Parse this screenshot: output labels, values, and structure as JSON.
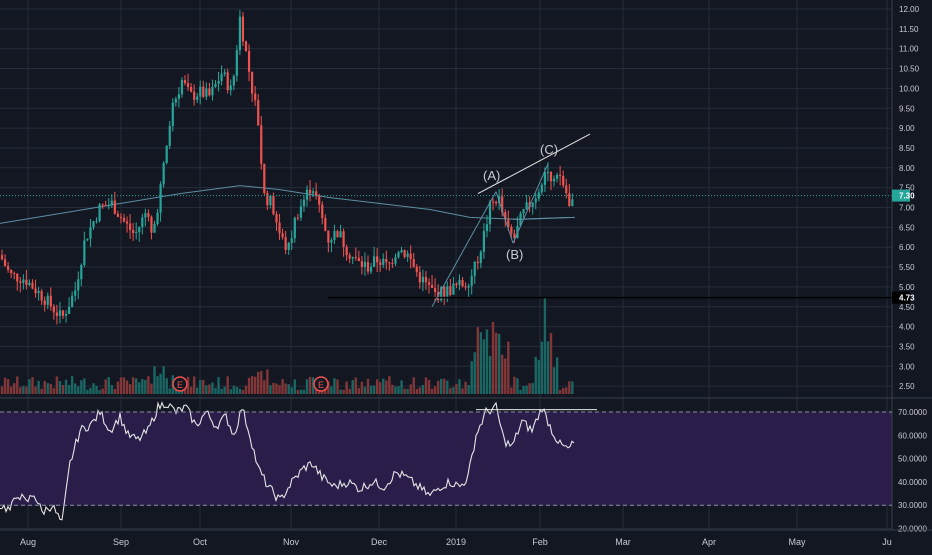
{
  "colors": {
    "background": "#131722",
    "grid": "#262b3a",
    "up": "#26a69a",
    "down": "#ef5350",
    "up_volume": "#1c6f69",
    "down_volume": "#8e3a3a",
    "moving_average": "#5b8fa3",
    "rsi_line": "#e6e6e6",
    "rsi_band": "#2b1d4a",
    "axis_text": "#c8cbd3",
    "price_tag": "#26a69a",
    "level_tag": "#131722"
  },
  "price_axis": {
    "ticks": [
      "12.00",
      "11.50",
      "11.00",
      "10.50",
      "10.00",
      "9.50",
      "9.00",
      "8.50",
      "8.00",
      "7.50",
      "7.00",
      "6.50",
      "6.00",
      "5.50",
      "5.00",
      "4.50",
      "4.00",
      "3.50",
      "3.00",
      "2.50"
    ],
    "current_price": "7.30",
    "level_label": "4.73"
  },
  "rsi_axis": {
    "ticks": [
      "70.0000",
      "60.0000",
      "50.0000",
      "40.0000",
      "30.0000",
      "20.0000"
    ]
  },
  "time_axis": {
    "labels": [
      "Aug",
      "Sep",
      "Oct",
      "Nov",
      "Dec",
      "2019",
      "Feb",
      "Mar",
      "Apr",
      "May",
      "Ju"
    ]
  },
  "annotations": {
    "wave_a": "(A)",
    "wave_b": "(B)",
    "wave_c": "(C)",
    "earnings_1": "E",
    "earnings_2": "E"
  },
  "chart_data": {
    "type": "candlestick",
    "x_range": [
      "Aug 2018",
      "Jun 2019"
    ],
    "y_range": [
      2.4,
      12.2
    ],
    "horizontal_level": 4.73,
    "last_price": 7.3,
    "rsi": {
      "levels": [
        30,
        70
      ],
      "approx_points": [
        [
          "Aug",
          30
        ],
        [
          "mid-Aug",
          34
        ],
        [
          "late-Aug",
          22
        ],
        [
          "early-Sep",
          65
        ],
        [
          "Sep",
          68
        ],
        [
          "late-Sep",
          60
        ],
        [
          "early-Oct",
          74
        ],
        [
          "Oct",
          70
        ],
        [
          "late-Oct",
          72
        ],
        [
          "early-Nov",
          40
        ],
        [
          "Nov",
          35
        ],
        [
          "mid-Nov",
          50
        ],
        [
          "Dec",
          38
        ],
        [
          "mid-Dec",
          42
        ],
        [
          "late-Dec",
          35
        ],
        [
          "2019",
          40
        ],
        [
          "mid-Jan",
          72
        ],
        [
          "late-Jan",
          55
        ],
        [
          "Feb",
          72
        ],
        [
          "mid-Feb",
          55
        ]
      ]
    },
    "elliott_wave": [
      "(A)",
      "(B)",
      "(C)"
    ]
  }
}
